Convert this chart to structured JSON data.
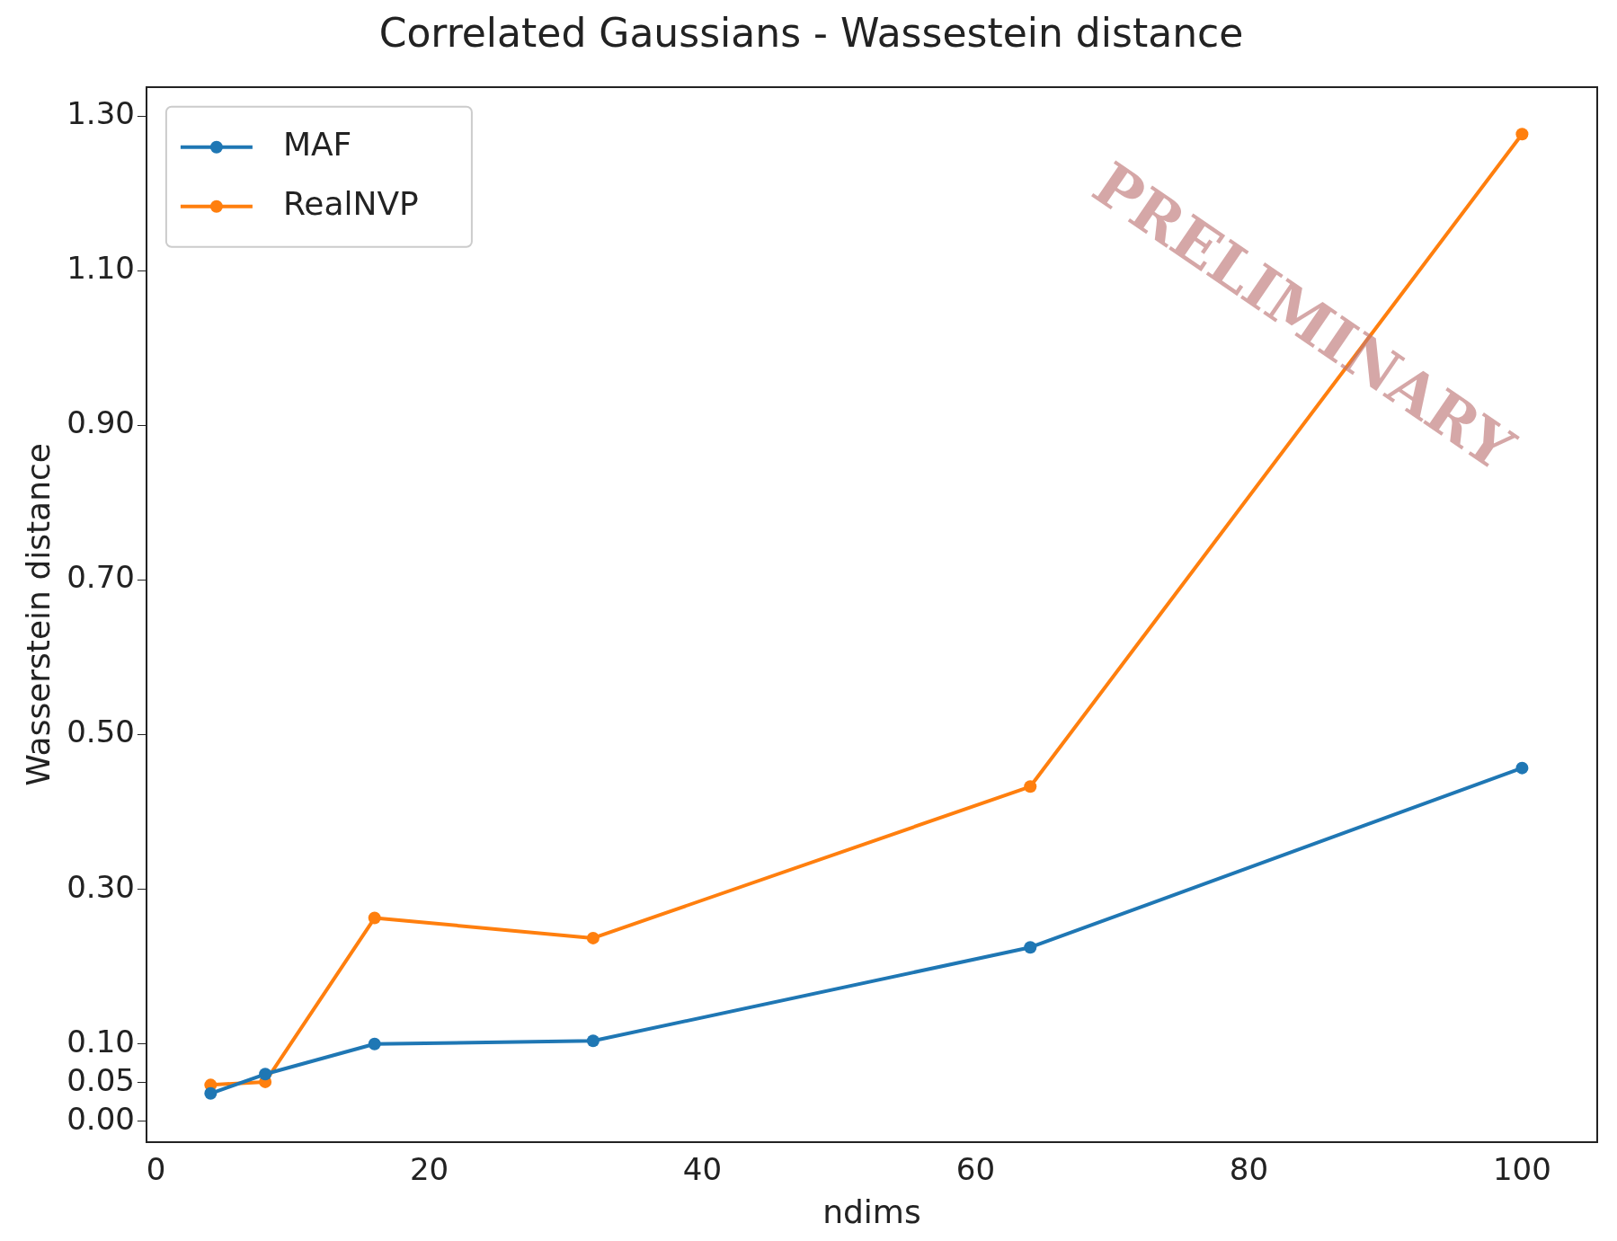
{
  "chart_data": {
    "type": "line",
    "title": "Correlated Gaussians - Wassestein distance",
    "xlabel": "ndims",
    "ylabel": "Wasserstein distance",
    "series": [
      {
        "name": "MAF",
        "color": "#1f77b4",
        "x": [
          4,
          8,
          16,
          32,
          64,
          100
        ],
        "values": [
          0.036,
          0.061,
          0.1,
          0.104,
          0.225,
          0.457
        ]
      },
      {
        "name": "RealNVP",
        "color": "#ff7f0e",
        "x": [
          4,
          8,
          16,
          32,
          64,
          100
        ],
        "values": [
          0.047,
          0.051,
          0.263,
          0.237,
          0.433,
          1.277
        ]
      }
    ],
    "xlim": [
      -0.7,
      105.5
    ],
    "xticks": [
      0,
      20,
      40,
      60,
      80,
      100
    ],
    "ylim": [
      -0.027,
      1.338
    ],
    "yticks": [
      {
        "value": 0,
        "label": "0.00"
      },
      {
        "value": 0.05,
        "label": "0.05"
      },
      {
        "value": 0.1,
        "label": "0.10"
      },
      {
        "value": 0.3,
        "label": "0.30"
      },
      {
        "value": 0.5,
        "label": "0.50"
      },
      {
        "value": 0.7,
        "label": "0.70"
      },
      {
        "value": 0.9,
        "label": "0.90"
      },
      {
        "value": 1.1,
        "label": "1.10"
      },
      {
        "value": 1.3,
        "label": "1.30"
      }
    ],
    "grid": false,
    "legend": "top left",
    "marker": "circle",
    "line_style": "solid",
    "annotations": [
      "PRELIMINARY"
    ]
  }
}
